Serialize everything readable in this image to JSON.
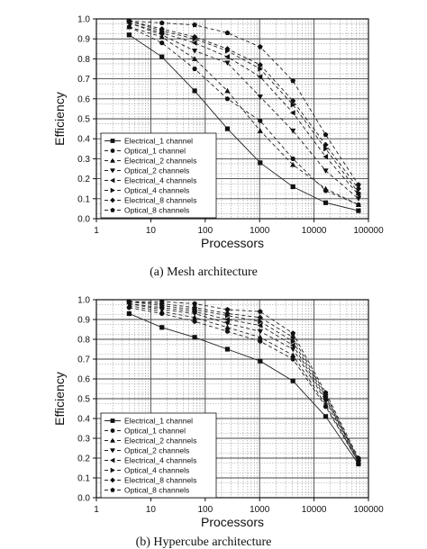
{
  "chart_data": [
    {
      "type": "line",
      "caption": "(a) Mesh architecture",
      "xlabel": "Processors",
      "ylabel": "Efficiency",
      "xscale": "log",
      "xlim": [
        1,
        100000
      ],
      "ylim": [
        0,
        1.0
      ],
      "x_ticks": [
        "1",
        "10",
        "100",
        "1000",
        "10000",
        "100000"
      ],
      "y_ticks": [
        "0.0",
        "0.1",
        "0.2",
        "0.3",
        "0.4",
        "0.5",
        "0.6",
        "0.7",
        "0.8",
        "0.9",
        "1.0"
      ],
      "grid": true,
      "legend_position": "bottom-left",
      "x": [
        4,
        16,
        64,
        256,
        1024,
        4096,
        16384,
        65536
      ],
      "series": [
        {
          "name": "Electrical_1 channel",
          "marker": "square",
          "values": [
            0.92,
            0.81,
            0.64,
            0.45,
            0.28,
            0.16,
            0.08,
            0.04
          ]
        },
        {
          "name": "Optical_1 channel",
          "marker": "circle",
          "values": [
            0.96,
            0.88,
            0.75,
            0.6,
            0.49,
            0.3,
            0.14,
            0.07
          ]
        },
        {
          "name": "Electrical_2 channels",
          "marker": "triangle-up",
          "values": [
            0.96,
            0.91,
            0.8,
            0.64,
            0.44,
            0.27,
            0.15,
            0.07
          ]
        },
        {
          "name": "Optical_2 channels",
          "marker": "triangle-down",
          "values": [
            0.98,
            0.92,
            0.84,
            0.78,
            0.61,
            0.44,
            0.24,
            0.1
          ]
        },
        {
          "name": "Electrical_4 channels",
          "marker": "triangle-left",
          "values": [
            0.98,
            0.93,
            0.88,
            0.81,
            0.71,
            0.53,
            0.31,
            0.12
          ]
        },
        {
          "name": "Optical_4 channels",
          "marker": "triangle-right",
          "values": [
            0.99,
            0.94,
            0.9,
            0.84,
            0.75,
            0.57,
            0.35,
            0.13
          ]
        },
        {
          "name": "Electrical_8 channels",
          "marker": "diamond",
          "values": [
            0.99,
            0.95,
            0.91,
            0.85,
            0.77,
            0.59,
            0.37,
            0.15
          ]
        },
        {
          "name": "Optical_8 channels",
          "marker": "pentagon",
          "values": [
            0.99,
            0.98,
            0.97,
            0.93,
            0.86,
            0.69,
            0.42,
            0.17
          ]
        }
      ]
    },
    {
      "type": "line",
      "caption": "(b) Hypercube architecture",
      "xlabel": "Processors",
      "ylabel": "Efficiency",
      "xscale": "log",
      "xlim": [
        1,
        100000
      ],
      "ylim": [
        0,
        1.0
      ],
      "x_ticks": [
        "1",
        "10",
        "100",
        "1000",
        "10000",
        "100000"
      ],
      "y_ticks": [
        "0.0",
        "0.1",
        "0.2",
        "0.3",
        "0.4",
        "0.5",
        "0.6",
        "0.7",
        "0.8",
        "0.9",
        "1.0"
      ],
      "grid": true,
      "legend_position": "bottom-left",
      "x": [
        4,
        16,
        64,
        256,
        1024,
        4096,
        16384,
        65536
      ],
      "series": [
        {
          "name": "Electrical_1 channel",
          "marker": "square",
          "values": [
            0.93,
            0.86,
            0.81,
            0.75,
            0.69,
            0.59,
            0.41,
            0.17
          ]
        },
        {
          "name": "Optical_1 channel",
          "marker": "circle",
          "values": [
            0.96,
            0.93,
            0.89,
            0.84,
            0.79,
            0.7,
            0.46,
            0.18
          ]
        },
        {
          "name": "Electrical_2 channels",
          "marker": "triangle-up",
          "values": [
            0.97,
            0.94,
            0.91,
            0.86,
            0.81,
            0.72,
            0.47,
            0.18
          ]
        },
        {
          "name": "Optical_2 channels",
          "marker": "triangle-down",
          "values": [
            0.98,
            0.95,
            0.93,
            0.88,
            0.84,
            0.75,
            0.49,
            0.18
          ]
        },
        {
          "name": "Electrical_4 channels",
          "marker": "triangle-left",
          "values": [
            0.98,
            0.96,
            0.94,
            0.9,
            0.87,
            0.77,
            0.5,
            0.19
          ]
        },
        {
          "name": "Optical_4 channels",
          "marker": "triangle-right",
          "values": [
            0.99,
            0.97,
            0.95,
            0.92,
            0.89,
            0.79,
            0.51,
            0.19
          ]
        },
        {
          "name": "Electrical_8 channels",
          "marker": "diamond",
          "values": [
            0.99,
            0.98,
            0.96,
            0.93,
            0.91,
            0.81,
            0.52,
            0.19
          ]
        },
        {
          "name": "Optical_8 channels",
          "marker": "pentagon",
          "values": [
            0.99,
            0.99,
            0.98,
            0.95,
            0.94,
            0.83,
            0.53,
            0.2
          ]
        }
      ]
    }
  ]
}
